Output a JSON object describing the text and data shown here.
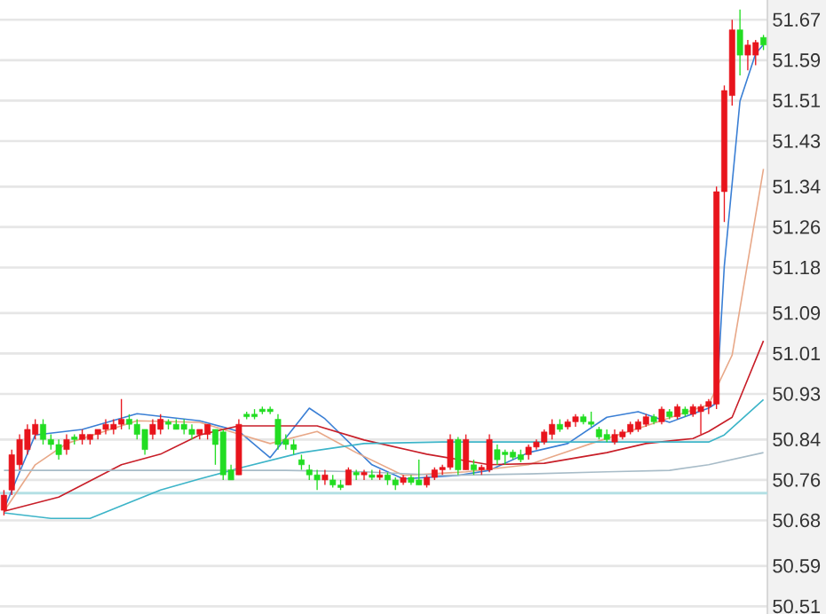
{
  "chart_data": {
    "type": "candlestick",
    "categories": [
      null,
      null,
      null,
      null,
      null,
      null,
      null,
      null,
      null,
      null,
      null,
      null,
      null,
      null,
      null,
      null,
      null,
      null,
      null,
      null,
      null,
      null,
      null,
      null,
      null,
      null,
      null,
      null,
      null,
      null,
      null,
      null,
      null,
      null,
      null,
      null,
      null,
      null,
      null,
      null,
      null,
      null,
      null,
      null,
      null,
      null,
      null,
      null,
      null,
      null,
      null,
      null,
      null,
      null,
      null,
      null,
      null,
      null,
      null,
      null,
      null,
      null,
      null,
      null,
      null,
      null,
      null,
      null,
      null,
      null,
      null,
      null,
      null,
      null,
      null,
      null,
      null,
      null,
      null,
      null,
      null,
      null,
      null,
      null,
      null,
      null,
      null,
      null,
      null,
      null,
      null,
      null,
      null,
      null,
      null,
      null,
      null,
      null
    ],
    "ohlc": [
      [
        50.7,
        50.74,
        50.69,
        50.73
      ],
      [
        50.74,
        50.82,
        50.73,
        50.81
      ],
      [
        50.79,
        50.85,
        50.78,
        50.84
      ],
      [
        50.82,
        50.87,
        50.81,
        50.86
      ],
      [
        50.85,
        50.88,
        50.84,
        50.87
      ],
      [
        50.87,
        50.88,
        50.83,
        50.84
      ],
      [
        50.84,
        50.85,
        50.82,
        50.83
      ],
      [
        50.83,
        50.84,
        50.8,
        50.81
      ],
      [
        50.82,
        50.85,
        50.81,
        50.84
      ],
      [
        50.845,
        50.85,
        50.83,
        50.84
      ],
      [
        50.84,
        50.86,
        50.83,
        50.85
      ],
      [
        50.84,
        50.85,
        50.83,
        50.85
      ],
      [
        50.85,
        50.86,
        50.84,
        50.86
      ],
      [
        50.86,
        50.88,
        50.85,
        50.87
      ],
      [
        50.86,
        50.88,
        50.85,
        50.87
      ],
      [
        50.87,
        50.92,
        50.86,
        50.88
      ],
      [
        50.88,
        50.89,
        50.86,
        50.87
      ],
      [
        50.87,
        50.88,
        50.84,
        50.85
      ],
      [
        50.86,
        50.86,
        50.81,
        50.82
      ],
      [
        50.85,
        50.88,
        50.84,
        50.87
      ],
      [
        50.86,
        50.89,
        50.85,
        50.88
      ],
      [
        50.875,
        50.88,
        50.86,
        50.87
      ],
      [
        50.87,
        50.88,
        50.86,
        50.86
      ],
      [
        50.87,
        50.88,
        50.85,
        50.86
      ],
      [
        50.86,
        50.87,
        50.84,
        50.85
      ],
      [
        50.85,
        50.86,
        50.84,
        50.86
      ],
      [
        50.85,
        50.87,
        50.84,
        50.87
      ],
      [
        50.86,
        50.86,
        50.79,
        50.83
      ],
      [
        50.855,
        50.86,
        50.76,
        50.77
      ],
      [
        50.78,
        50.79,
        50.76,
        50.76
      ],
      [
        50.77,
        50.88,
        50.77,
        50.87
      ],
      [
        50.89,
        50.895,
        50.88,
        50.885
      ],
      [
        50.89,
        50.9,
        50.88,
        50.885
      ],
      [
        50.9,
        50.905,
        50.89,
        50.895
      ],
      [
        50.9,
        50.905,
        50.89,
        50.895
      ],
      [
        50.88,
        50.89,
        50.82,
        50.83
      ],
      [
        50.84,
        50.85,
        50.82,
        50.83
      ],
      [
        50.83,
        50.84,
        50.81,
        50.82
      ],
      [
        50.8,
        50.81,
        50.78,
        50.79
      ],
      [
        50.78,
        50.79,
        50.76,
        50.77
      ],
      [
        50.77,
        50.78,
        50.74,
        50.76
      ],
      [
        50.76,
        50.78,
        50.75,
        50.77
      ],
      [
        50.76,
        50.77,
        50.745,
        50.75
      ],
      [
        50.75,
        50.76,
        50.74,
        50.745
      ],
      [
        50.75,
        50.785,
        50.75,
        50.78
      ],
      [
        50.775,
        50.78,
        50.76,
        50.77
      ],
      [
        50.77,
        50.78,
        50.76,
        50.775
      ],
      [
        50.77,
        50.78,
        50.76,
        50.765
      ],
      [
        50.765,
        50.78,
        50.76,
        50.77
      ],
      [
        50.77,
        50.775,
        50.75,
        50.76
      ],
      [
        50.76,
        50.765,
        50.74,
        50.75
      ],
      [
        50.755,
        50.77,
        50.75,
        50.765
      ],
      [
        50.765,
        50.77,
        50.75,
        50.755
      ],
      [
        50.76,
        50.8,
        50.75,
        50.75
      ],
      [
        50.75,
        50.77,
        50.745,
        50.765
      ],
      [
        50.765,
        50.785,
        50.76,
        50.78
      ],
      [
        50.78,
        50.79,
        50.77,
        50.785
      ],
      [
        50.785,
        50.85,
        50.78,
        50.84
      ],
      [
        50.84,
        50.845,
        50.77,
        50.78
      ],
      [
        50.78,
        50.85,
        50.78,
        50.84
      ],
      [
        50.79,
        50.8,
        50.77,
        50.78
      ],
      [
        50.78,
        50.79,
        50.77,
        50.785
      ],
      [
        50.78,
        50.85,
        50.775,
        50.84
      ],
      [
        50.82,
        50.83,
        50.79,
        50.8
      ],
      [
        50.815,
        50.82,
        50.79,
        50.81
      ],
      [
        50.815,
        50.82,
        50.8,
        50.805
      ],
      [
        50.81,
        50.82,
        50.795,
        50.8
      ],
      [
        50.81,
        50.83,
        50.8,
        50.825
      ],
      [
        50.825,
        50.84,
        50.82,
        50.835
      ],
      [
        50.835,
        50.86,
        50.83,
        50.855
      ],
      [
        50.85,
        50.88,
        50.84,
        50.87
      ],
      [
        50.87,
        50.88,
        50.855,
        50.86
      ],
      [
        50.865,
        50.88,
        50.86,
        50.875
      ],
      [
        50.875,
        50.89,
        50.865,
        50.885
      ],
      [
        50.885,
        50.89,
        50.87,
        50.875
      ],
      [
        50.875,
        50.895,
        50.865,
        50.87
      ],
      [
        50.86,
        50.865,
        50.84,
        50.845
      ],
      [
        50.85,
        50.86,
        50.835,
        50.84
      ],
      [
        50.835,
        50.86,
        50.83,
        50.85
      ],
      [
        50.845,
        50.86,
        50.84,
        50.855
      ],
      [
        50.855,
        50.875,
        50.85,
        50.87
      ],
      [
        50.86,
        50.88,
        50.855,
        50.875
      ],
      [
        50.87,
        50.89,
        50.865,
        50.885
      ],
      [
        50.885,
        50.89,
        50.87,
        50.875
      ],
      [
        50.875,
        50.905,
        50.87,
        50.9
      ],
      [
        50.895,
        50.9,
        50.88,
        50.885
      ],
      [
        50.885,
        50.91,
        50.88,
        50.905
      ],
      [
        50.9,
        50.905,
        50.885,
        50.89
      ],
      [
        50.89,
        50.91,
        50.885,
        50.905
      ],
      [
        50.895,
        50.91,
        50.85,
        50.905
      ],
      [
        50.905,
        50.92,
        50.89,
        50.915
      ],
      [
        50.91,
        51.34,
        50.9,
        51.33
      ],
      [
        51.33,
        51.54,
        51.27,
        51.53
      ],
      [
        51.52,
        51.67,
        51.5,
        51.65
      ],
      [
        51.65,
        51.69,
        51.56,
        51.6
      ],
      [
        51.6,
        51.63,
        51.57,
        51.62
      ],
      [
        51.6,
        51.63,
        51.58,
        51.625
      ],
      [
        51.635,
        51.64,
        51.61,
        51.62
      ]
    ],
    "colors": [
      "#e8141c",
      "#e8141c",
      "#e8141c",
      "#e8141c",
      "#e8141c",
      "#22dd22",
      "#22dd22",
      "#22dd22",
      "#e8141c",
      "#22dd22",
      "#e8141c",
      "#e8141c",
      "#e8141c",
      "#e8141c",
      "#e8141c",
      "#e8141c",
      "#22dd22",
      "#22dd22",
      "#22dd22",
      "#e8141c",
      "#e8141c",
      "#22dd22",
      "#22dd22",
      "#22dd22",
      "#22dd22",
      "#e8141c",
      "#e8141c",
      "#22dd22",
      "#22dd22",
      "#22dd22",
      "#e8141c",
      "#22dd22",
      "#22dd22",
      "#22dd22",
      "#22dd22",
      "#22dd22",
      "#22dd22",
      "#22dd22",
      "#22dd22",
      "#22dd22",
      "#22dd22",
      "#e8141c",
      "#22dd22",
      "#22dd22",
      "#e8141c",
      "#22dd22",
      "#e8141c",
      "#22dd22",
      "#e8141c",
      "#22dd22",
      "#22dd22",
      "#e8141c",
      "#22dd22",
      "#22dd22",
      "#e8141c",
      "#e8141c",
      "#e8141c",
      "#e8141c",
      "#22dd22",
      "#e8141c",
      "#22dd22",
      "#e8141c",
      "#e8141c",
      "#22dd22",
      "#22dd22",
      "#22dd22",
      "#22dd22",
      "#e8141c",
      "#e8141c",
      "#e8141c",
      "#e8141c",
      "#22dd22",
      "#e8141c",
      "#e8141c",
      "#22dd22",
      "#22dd22",
      "#22dd22",
      "#22dd22",
      "#e8141c",
      "#e8141c",
      "#e8141c",
      "#e8141c",
      "#e8141c",
      "#22dd22",
      "#e8141c",
      "#22dd22",
      "#e8141c",
      "#22dd22",
      "#e8141c",
      "#e8141c",
      "#e8141c",
      "#e8141c",
      "#e8141c",
      "#e8141c",
      "#22dd22",
      "#e8141c",
      "#e8141c",
      "#22dd22"
    ],
    "series": [
      {
        "type": "line",
        "color": "#3a7fd5",
        "values": [
          50.702,
          null,
          null,
          null,
          50.849,
          null,
          null,
          null,
          null,
          null,
          50.86,
          null,
          null,
          null,
          null,
          null,
          null,
          50.891,
          null,
          null,
          null,
          null,
          null,
          null,
          null,
          50.877,
          null,
          null,
          null,
          null,
          50.856,
          null,
          null,
          null,
          50.804,
          null,
          null,
          null,
          null,
          50.902,
          null,
          50.881,
          null,
          null,
          null,
          null,
          null,
          50.79,
          null,
          null,
          null,
          50.762,
          null,
          null,
          null,
          null,
          null,
          null,
          50.769,
          null,
          null,
          null,
          50.779,
          null,
          null,
          null,
          null,
          50.814,
          null,
          null,
          null,
          null,
          50.832,
          null,
          null,
          null,
          null,
          50.884,
          null,
          null,
          null,
          50.895,
          null,
          null,
          null,
          50.874,
          null,
          null,
          null,
          null,
          50.902,
          50.912,
          51.183,
          null,
          51.509,
          null,
          51.603,
          51.621
        ]
      },
      {
        "type": "line",
        "color": "#e8a888",
        "values": [
          50.698,
          null,
          null,
          null,
          50.79,
          null,
          null,
          null,
          50.832,
          null,
          null,
          null,
          null,
          null,
          null,
          null,
          null,
          50.877,
          null,
          null,
          null,
          null,
          null,
          null,
          null,
          50.874,
          null,
          null,
          null,
          null,
          null,
          null,
          null,
          null,
          50.832,
          null,
          null,
          null,
          null,
          null,
          50.856,
          null,
          null,
          null,
          null,
          50.814,
          null,
          null,
          null,
          null,
          null,
          50.769,
          null,
          null,
          null,
          null,
          null,
          null,
          null,
          50.776,
          null,
          null,
          null,
          null,
          null,
          null,
          null,
          50.79,
          null,
          null,
          null,
          null,
          null,
          null,
          null,
          50.832,
          null,
          null,
          null,
          null,
          null,
          null,
          50.867,
          null,
          null,
          null,
          null,
          null,
          null,
          null,
          50.909,
          null,
          null,
          51.007,
          null,
          null,
          null,
          51.375
        ]
      },
      {
        "type": "line",
        "color": "#c81e28",
        "values": [
          50.698,
          null,
          null,
          null,
          null,
          null,
          null,
          50.726,
          null,
          null,
          null,
          null,
          null,
          null,
          null,
          50.79,
          null,
          null,
          null,
          null,
          50.811,
          null,
          null,
          null,
          null,
          50.849,
          null,
          null,
          null,
          null,
          50.867,
          null,
          null,
          null,
          null,
          null,
          null,
          null,
          null,
          null,
          50.867,
          null,
          null,
          null,
          null,
          null,
          50.839,
          null,
          null,
          null,
          null,
          null,
          null,
          null,
          50.811,
          null,
          null,
          null,
          null,
          null,
          null,
          null,
          50.79,
          null,
          null,
          null,
          null,
          null,
          null,
          50.793,
          null,
          null,
          null,
          null,
          null,
          null,
          null,
          50.814,
          null,
          null,
          null,
          null,
          50.832,
          null,
          null,
          null,
          null,
          null,
          50.842,
          null,
          50.856,
          null,
          null,
          50.884,
          null,
          null,
          null,
          51.035
        ]
      },
      {
        "type": "line",
        "color": "#3cb4c8",
        "values": [
          50.695,
          null,
          null,
          null,
          null,
          null,
          50.684,
          null,
          null,
          null,
          null,
          50.684,
          null,
          null,
          null,
          50.709,
          null,
          null,
          null,
          null,
          50.74,
          null,
          null,
          null,
          null,
          50.762,
          null,
          null,
          null,
          null,
          50.783,
          null,
          null,
          null,
          null,
          null,
          null,
          null,
          50.814,
          null,
          null,
          null,
          null,
          null,
          null,
          null,
          50.832,
          null,
          null,
          null,
          null,
          null,
          null,
          null,
          null,
          null,
          50.835,
          null,
          null,
          null,
          null,
          null,
          null,
          null,
          null,
          null,
          null,
          50.835,
          null,
          null,
          null,
          null,
          null,
          null,
          null,
          null,
          null,
          50.835,
          null,
          null,
          null,
          null,
          null,
          null,
          null,
          null,
          null,
          null,
          null,
          null,
          50.835,
          null,
          50.849,
          null,
          null,
          null,
          null,
          50.919
        ]
      },
      {
        "type": "line",
        "color": "#a8bcc8",
        "values": [
          50.779,
          null,
          null,
          null,
          null,
          null,
          null,
          null,
          null,
          null,
          null,
          null,
          null,
          null,
          null,
          null,
          null,
          null,
          null,
          null,
          50.779,
          null,
          null,
          null,
          null,
          null,
          null,
          null,
          null,
          null,
          null,
          null,
          null,
          null,
          null,
          null,
          50.779,
          null,
          null,
          null,
          null,
          null,
          null,
          null,
          null,
          null,
          50.776,
          null,
          null,
          null,
          null,
          null,
          null,
          null,
          null,
          null,
          50.769,
          null,
          null,
          null,
          null,
          null,
          null,
          null,
          null,
          null,
          null,
          50.772,
          null,
          null,
          null,
          null,
          null,
          null,
          null,
          null,
          null,
          50.776,
          null,
          null,
          null,
          null,
          null,
          null,
          null,
          50.779,
          null,
          null,
          null,
          null,
          50.79,
          null,
          null,
          null,
          null,
          null,
          null,
          50.814
        ]
      }
    ],
    "ylim": [
      50.495,
      51.709
    ],
    "yticks": [
      50.51,
      50.59,
      50.68,
      50.76,
      50.84,
      50.93,
      51.01,
      51.09,
      51.18,
      51.26,
      51.34,
      51.43,
      51.51,
      51.59,
      51.67
    ],
    "grid": "y",
    "tick_labels": "y",
    "ref_lines": [
      {
        "axis": "y",
        "value": 50.734,
        "color": "#b4e0e4"
      }
    ]
  }
}
